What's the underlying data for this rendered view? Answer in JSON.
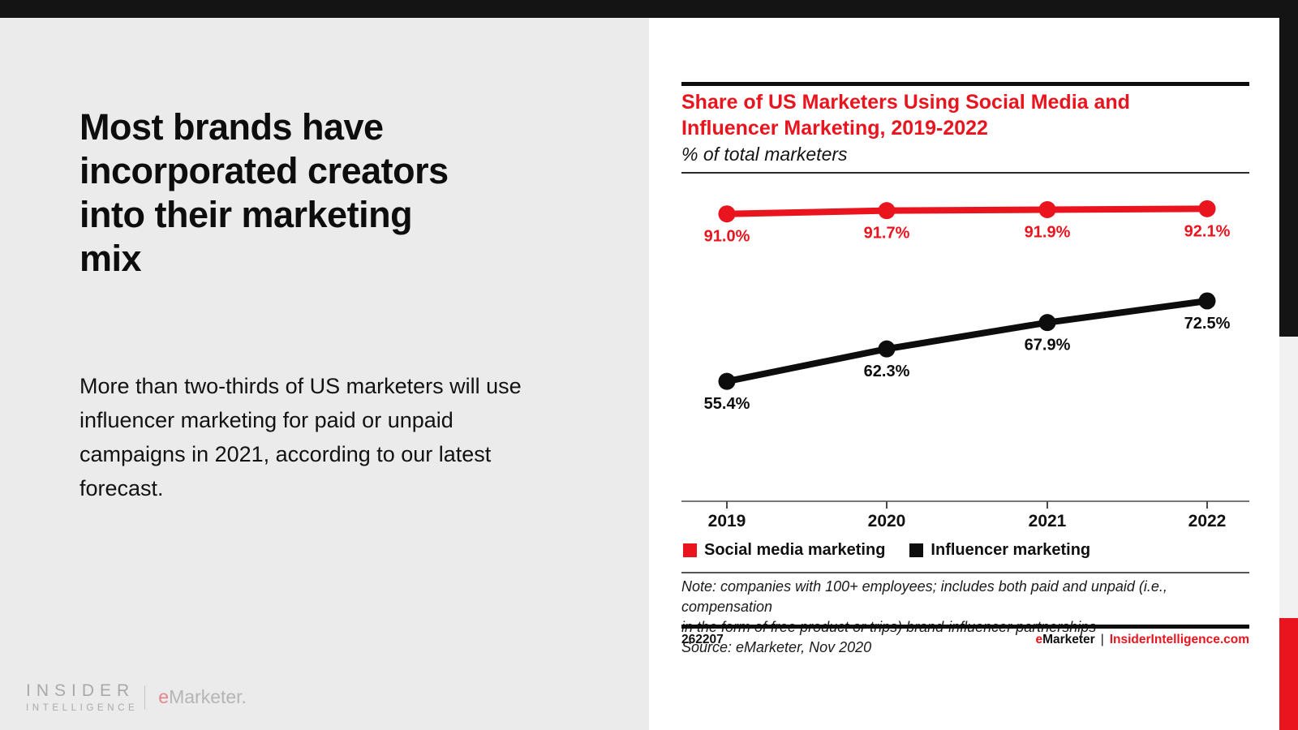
{
  "slide": {
    "headline": "Most brands have\nincorporated creators\ninto their marketing\nmix",
    "body": "More than two-thirds of US marketers will use influencer marketing for paid or unpaid campaigns in 2021, according to our latest forecast.",
    "logo": {
      "insider": "INSIDER",
      "intelligence": "INTELLIGENCE",
      "emarketer_e": "e",
      "emarketer_rest": "Marketer."
    }
  },
  "chart_panel": {
    "title": "Share of US Marketers Using Social Media and\nInfluencer Marketing, 2019-2022",
    "subtitle": "% of total marketers",
    "note": "Note: companies with 100+ employees; includes both paid and unpaid (i.e., compensation\nin the form of free product or trips) brand-influencer partnerships",
    "source": "Source: eMarketer, Nov 2020",
    "footer": {
      "chart_id": "262207",
      "emarketer_e": "e",
      "emarketer_rest": "Marketer",
      "divider": "|",
      "site": "InsiderIntelligence.com"
    }
  },
  "chart_data": {
    "type": "line",
    "title": "Share of US Marketers Using Social Media and Influencer Marketing, 2019-2022",
    "subtitle": "% of total marketers",
    "unit": "%",
    "categories": [
      "2019",
      "2020",
      "2021",
      "2022"
    ],
    "series": [
      {
        "name": "Social media marketing",
        "color": "#e9141d",
        "values": [
          91.0,
          91.7,
          91.9,
          92.1
        ],
        "labels": [
          "91.0%",
          "91.7%",
          "91.9%",
          "92.1%"
        ]
      },
      {
        "name": "Influencer marketing",
        "color": "#0d0d0d",
        "values": [
          55.4,
          62.3,
          67.9,
          72.5
        ],
        "labels": [
          "55.4%",
          "62.3%",
          "67.9%",
          "72.5%"
        ]
      }
    ],
    "ylim": [
      50,
      100
    ],
    "grid": false,
    "legend_position": "bottom"
  },
  "colors": {
    "accent_red": "#e9141d",
    "black_bar": "#141414",
    "panel_gray": "#ebebeb",
    "strip_gray": "#f1f1f1"
  }
}
